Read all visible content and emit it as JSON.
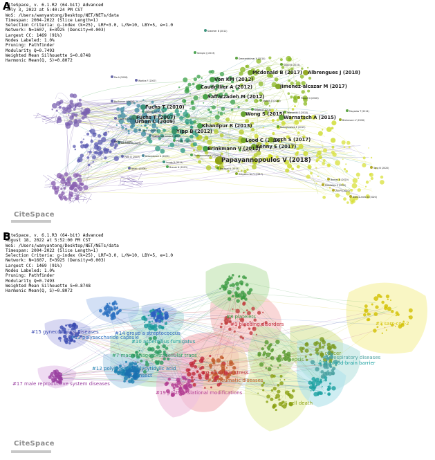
{
  "panel_a": {
    "letter": "A",
    "meta": [
      "CiteSpace, v. 6.1.R2 (64-bit) Advanced",
      "July 3, 2022 at 5:40:24 PM CST",
      "WoS: /Users/wanyantong/Desktop/NET/NETs/data",
      "Timespan: 2004-2022 (Slice Length=1)",
      "Selection Criteria: g-index (k=25), LRF=3.0, L/N=10, LBY=5, e=1.0",
      "Network: N=1607, E=3925 (Density=0.003)",
      "Largest CC: 1469 (91%)",
      "Nodes Labeled: 1.0%",
      "Pruning: Pathfinder",
      "Modularity Q=0.7493",
      "Weighted Mean Silhouette S=0.8748",
      "Harmonic Mean(Q, S)=0.8072"
    ],
    "logo": "CiteSpace",
    "nodes": [
      {
        "label": "Papayannopoulos V (2018)",
        "size": "l",
        "color": "#8a9a10"
      },
      {
        "label": "Fuchs T (2007)",
        "size": "m",
        "color": "#3a8a6a"
      },
      {
        "label": "Fuchs T (2010)",
        "size": "m",
        "color": "#2a8a70"
      },
      {
        "label": "Von KM (2012)",
        "size": "m",
        "color": "#3a9a3a"
      },
      {
        "label": "Caudrillier A (2012)",
        "size": "m",
        "color": "#3a9a3a"
      },
      {
        "label": "Saffarzadeh M (2012)",
        "size": "m",
        "color": "#3a9a3a"
      },
      {
        "label": "Mcdonald B (2017)",
        "size": "m",
        "color": "#6aa01a"
      },
      {
        "label": "Albrengues J (2018)",
        "size": "m",
        "color": "#8aa010"
      },
      {
        "label": "Jimenez-alcazar M (2017)",
        "size": "m",
        "color": "#7aa014"
      },
      {
        "label": "Yipp B (2012)",
        "size": "m",
        "color": "#2a8a60"
      },
      {
        "label": "Khandpur R (2013)",
        "size": "m",
        "color": "#3a9a40"
      },
      {
        "label": "Wong S (2015)",
        "size": "m",
        "color": "#5a9a20"
      },
      {
        "label": "Warnatsch A (2015)",
        "size": "m",
        "color": "#5a9a20"
      },
      {
        "label": "Lood C (2016)",
        "size": "m",
        "color": "#6aa018"
      },
      {
        "label": "Kenny E (2017)",
        "size": "m",
        "color": "#6aa018"
      },
      {
        "label": "Jorch S (2017)",
        "size": "m",
        "color": "#7aa014"
      },
      {
        "label": "Brinkmann V (2012)",
        "size": "m",
        "color": "#3a9a40"
      },
      {
        "label": "Urban C (2009)",
        "size": "m",
        "color": "#3a7a90"
      },
      {
        "label": "Delgado-rizo V (2017)",
        "size": "s",
        "color": "#7aa014"
      },
      {
        "label": "Middleton E (2020)",
        "size": "s",
        "color": "#aaa010"
      },
      {
        "label": "Barnes B (2020)",
        "size": "s",
        "color": "#aaa010"
      },
      {
        "label": "Zuo Y (2020)",
        "size": "s",
        "color": "#aaa010"
      },
      {
        "label": "Kolaczkowska E (2015)",
        "size": "s",
        "color": "#5a9a20"
      },
      {
        "label": "Stakos D (2015)",
        "size": "s",
        "color": "#5a9a20"
      },
      {
        "label": "Franck G (2018)",
        "size": "s",
        "color": "#8aa010"
      },
      {
        "label": "Parker H (2012)",
        "size": "s",
        "color": "#3a9a40"
      },
      {
        "label": "Branzk N (2014)",
        "size": "s",
        "color": "#4a9a30"
      },
      {
        "label": "Thammavongsa V (2013)",
        "size": "s",
        "color": "#3a9a40"
      },
      {
        "label": "Rochael N (2015)",
        "size": "s",
        "color": "#5a9a20"
      },
      {
        "label": "Branzk N (2013)",
        "size": "s",
        "color": "#3a9a40"
      },
      {
        "label": "Sreeramkumar V (2014)",
        "size": "s",
        "color": "#4a9a30"
      },
      {
        "label": "Knight J (2014)",
        "size": "s",
        "color": "#4a9a30"
      },
      {
        "label": "Yalavarthi S (2015)",
        "size": "s",
        "color": "#5a9a20"
      },
      {
        "label": "Mayadas T (2014)",
        "size": "s",
        "color": "#4a9a30"
      },
      {
        "label": "Brinkmann V (2018)",
        "size": "s",
        "color": "#8aa010"
      },
      {
        "label": "Tang N (2020)",
        "size": "s",
        "color": "#aaa010"
      },
      {
        "label": "Blanco-melo D (2020)",
        "size": "s",
        "color": "#aaa010"
      },
      {
        "label": "Sagiv B (2015)",
        "size": "s",
        "color": "#5a9a20"
      },
      {
        "label": "Semple J (2013)",
        "size": "s",
        "color": "#3a9a40"
      },
      {
        "label": "Kraemer B (2011)",
        "size": "s",
        "color": "#2a8a70"
      },
      {
        "label": "Clark S (2007)",
        "size": "s",
        "color": "#3a7a90"
      },
      {
        "label": "Guimaraes-costa A (2009)",
        "size": "s",
        "color": "#3a7a90"
      },
      {
        "label": "Bachiller V (2009)",
        "size": "s",
        "color": "#3a7a90"
      },
      {
        "label": "Nathan C (2006)",
        "size": "s",
        "color": "#5a5aa0"
      },
      {
        "label": "Palic D (2007)",
        "size": "s",
        "color": "#5a5aa0"
      },
      {
        "label": "Ma A (2008)",
        "size": "s",
        "color": "#5a5aa0"
      },
      {
        "label": "Buchanan J (2006)",
        "size": "s",
        "color": "#5a5aa0"
      },
      {
        "label": "Wartha F (2007)",
        "size": "s",
        "color": "#5a5aa0"
      },
      {
        "label": "Hakkim A (2010)",
        "size": "s",
        "color": "#2a8a70"
      },
      {
        "label": "Gupta A (2007)",
        "size": "s",
        "color": "#5a5aa0"
      },
      {
        "label": "Neeli I (2008)",
        "size": "s",
        "color": "#5a5aa0"
      },
      {
        "label": "Kessenbrock K (2009)",
        "size": "s",
        "color": "#3a7a90"
      },
      {
        "label": "Lande R (2011)",
        "size": "s",
        "color": "#2a8a70"
      }
    ]
  },
  "panel_b": {
    "letter": "B",
    "meta": [
      "CiteSpace, v. 6.1.R3 (64-bit) Advanced",
      "August 18, 2022 at 5:52:00 PM CST",
      "WoS: /Users/wanyantong/Desktop/NET/NETs/data",
      "Timespan: 2004-2022 (Slice Length=1)",
      "Selection Criteria: g-index (k=25), LRF=3.0, L/N=10, LBY=5, e=1.0",
      "Network: N=1607, E=3925 (Density=0.003)",
      "Largest CC: 1469 (91%)",
      "Nodes Labeled: 1.0%",
      "Pruning: Pathfinder",
      "Modularity Q=0.7493",
      "Weighted Mean Silhouette S=0.8748",
      "Harmonic Mean(Q, S)=0.8072"
    ],
    "logo": "CiteSpace",
    "clusters": [
      {
        "label": "#0 oxidative stress",
        "color": "#c0293a",
        "hull": "#f4b6bd"
      },
      {
        "label": "#1 bleeding disorders",
        "color": "#c0293a",
        "hull": "#f7c3c3"
      },
      {
        "label": "#2 rheumatic diseases",
        "color": "#c05a2a",
        "hull": "#f2d6b0"
      },
      {
        "label": "#3 sars-cov-2",
        "color": "#d2c000",
        "hull": "#f7f2a6"
      },
      {
        "label": "#4 cell death",
        "color": "#8aa010",
        "hull": "#e8f0b0"
      },
      {
        "label": "#5 cancer",
        "color": "#7a9a20",
        "hull": "#dde8a4"
      },
      {
        "label": "#6 sepsis",
        "color": "#5a9a30",
        "hull": "#d2e8b4"
      },
      {
        "label": "#7 macrophage extracellular traps",
        "color": "#2a9a60",
        "hull": "#bde6c8"
      },
      {
        "label": "#8 platelets",
        "color": "#3a9a40",
        "hull": "#c6e6b6"
      },
      {
        "label": "#9 respiratory diseases",
        "color": "#4aa0a0",
        "hull": "#bfe6e2"
      },
      {
        "label": "#10 aspergillus fumigatus",
        "color": "#1a9a9a",
        "hull": "#bde4e4"
      },
      {
        "label": "#11 blood-brain barrier",
        "color": "#1aa0a0",
        "hull": "#b4e4ec"
      },
      {
        "label": "#12 polyinosinic-polycytidylic acid",
        "color": "#1a80b0",
        "hull": "#b8d8ec"
      },
      {
        "label": "#13 polysaccharide capsule",
        "color": "#2a70c0",
        "hull": "#bcd0f0"
      },
      {
        "label": "#14 group a streptococcus",
        "color": "#2a60c0",
        "hull": "#c0ccf0"
      },
      {
        "label": "#15 gynecological diseases",
        "color": "#3a4ab0",
        "hull": "#c4c4ec"
      },
      {
        "label": "#16 insect",
        "color": "#1a70b0",
        "hull": "#b8d4ec"
      },
      {
        "label": "#17 male reproductive system diseases",
        "color": "#9a40a0",
        "hull": "#e8c8ec"
      },
      {
        "label": "#19 posttranslational modifications",
        "color": "#b03a90",
        "hull": "#f0c4e0"
      }
    ]
  }
}
